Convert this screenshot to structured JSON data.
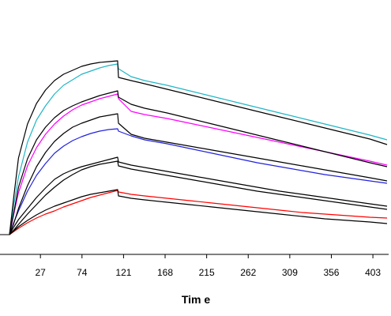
{
  "chart_data": {
    "type": "line",
    "title": "",
    "xlabel": "Tim e",
    "ylabel": "",
    "xlim": [
      -8,
      419
    ],
    "ylim": [
      0,
      250
    ],
    "x_ticks": [
      27,
      74,
      121,
      168,
      215,
      262,
      309,
      356,
      403
    ],
    "x_tick_labels": [
      "27",
      "74",
      "121",
      "168",
      "215",
      "262",
      "309",
      "356",
      "403"
    ],
    "grid": false,
    "legend": "none",
    "series": [
      {
        "color": "#21b6c6",
        "kind": "measured",
        "x": [
          0,
          5,
          10,
          20,
          30,
          40,
          50,
          60,
          70,
          80,
          90,
          100,
          110,
          120,
          121,
          135,
          150,
          175,
          200,
          225,
          250,
          275,
          300,
          325,
          350,
          375,
          400,
          419
        ],
        "values": [
          0,
          39,
          73,
          117,
          145,
          163,
          178,
          189,
          196,
          203,
          207,
          211,
          214,
          216,
          210,
          200,
          195,
          189,
          182,
          175,
          168,
          161,
          154,
          147,
          140,
          133,
          126,
          120
        ]
      },
      {
        "color": "#000000",
        "kind": "fit",
        "x": [
          0,
          5,
          10,
          20,
          30,
          40,
          50,
          60,
          70,
          80,
          90,
          100,
          110,
          120,
          121,
          135,
          150,
          175,
          200,
          225,
          250,
          275,
          300,
          325,
          350,
          375,
          400,
          419
        ],
        "values": [
          0,
          50,
          97,
          140,
          166,
          183,
          195,
          203,
          208,
          213,
          216,
          218,
          219,
          220,
          199,
          195,
          191,
          184,
          177,
          170,
          163,
          156,
          149,
          142,
          135,
          128,
          121,
          114
        ]
      },
      {
        "color": "#ff00ff",
        "kind": "measured",
        "x": [
          0,
          5,
          10,
          20,
          30,
          40,
          50,
          60,
          70,
          80,
          90,
          100,
          110,
          120,
          121,
          135,
          150,
          175,
          200,
          225,
          250,
          275,
          300,
          325,
          350,
          375,
          400,
          419
        ],
        "values": [
          0,
          27,
          53,
          87,
          110,
          127,
          140,
          150,
          158,
          164,
          168,
          172,
          175,
          178,
          172,
          156,
          152,
          147,
          141,
          135,
          129,
          123,
          117,
          111,
          105,
          99,
          93,
          88
        ]
      },
      {
        "color": "#000000",
        "kind": "fit",
        "x": [
          0,
          5,
          10,
          20,
          30,
          40,
          50,
          60,
          70,
          80,
          90,
          100,
          110,
          120,
          121,
          135,
          150,
          175,
          200,
          225,
          250,
          275,
          300,
          325,
          350,
          375,
          400,
          419
        ],
        "values": [
          0,
          29,
          60,
          96,
          120,
          136,
          148,
          157,
          163,
          168,
          172,
          176,
          179,
          182,
          174,
          165,
          160,
          154,
          147,
          140,
          133,
          126,
          119,
          112,
          105,
          98,
          91,
          86
        ]
      },
      {
        "color": "#2222dd",
        "kind": "measured",
        "x": [
          0,
          5,
          10,
          20,
          30,
          40,
          50,
          60,
          70,
          80,
          90,
          100,
          110,
          120,
          121,
          135,
          150,
          175,
          200,
          225,
          250,
          275,
          300,
          325,
          350,
          375,
          400,
          419
        ],
        "values": [
          0,
          16,
          30,
          55,
          75,
          90,
          103,
          112,
          119,
          124,
          128,
          131,
          133,
          134,
          131,
          125,
          120,
          115,
          109,
          103,
          97,
          91,
          86,
          81,
          76,
          72,
          68,
          65
        ]
      },
      {
        "color": "#000000",
        "kind": "fit",
        "x": [
          0,
          5,
          10,
          20,
          30,
          40,
          50,
          60,
          70,
          80,
          90,
          100,
          110,
          120,
          121,
          135,
          150,
          175,
          200,
          225,
          250,
          275,
          300,
          325,
          350,
          375,
          400,
          419
        ],
        "values": [
          0,
          15,
          33,
          62,
          86,
          104,
          118,
          128,
          136,
          141,
          145,
          149,
          151,
          153,
          141,
          127,
          122,
          117,
          112,
          107,
          102,
          97,
          92,
          87,
          82,
          77,
          72,
          68
        ]
      },
      {
        "color": "#000000",
        "kind": "fit",
        "x": [
          0,
          5,
          10,
          20,
          30,
          40,
          50,
          60,
          70,
          80,
          90,
          100,
          110,
          120,
          121,
          135,
          150,
          175,
          200,
          225,
          250,
          275,
          300,
          325,
          350,
          375,
          400,
          419
        ],
        "values": [
          0,
          10,
          19,
          33,
          47,
          59,
          70,
          77,
          82,
          86,
          89,
          92,
          95,
          98,
          92,
          88,
          85,
          80,
          75,
          70,
          65,
          60,
          55,
          51,
          47,
          43,
          39,
          36
        ]
      },
      {
        "color": "#000000",
        "kind": "fit",
        "x": [
          0,
          5,
          10,
          20,
          30,
          40,
          50,
          60,
          70,
          80,
          90,
          100,
          110,
          120,
          121,
          135,
          150,
          175,
          200,
          225,
          250,
          275,
          300,
          325,
          350,
          375,
          400,
          419
        ],
        "values": [
          0,
          6,
          13,
          26,
          38,
          50,
          60,
          69,
          76,
          82,
          86,
          89,
          91,
          93,
          87,
          83,
          80,
          75,
          70,
          65,
          60,
          55,
          51,
          47,
          43,
          39,
          35,
          32
        ]
      },
      {
        "color": "#ff0000",
        "kind": "measured",
        "x": [
          0,
          5,
          10,
          20,
          30,
          40,
          50,
          60,
          70,
          80,
          90,
          100,
          110,
          120,
          121,
          135,
          150,
          175,
          200,
          225,
          250,
          275,
          300,
          325,
          350,
          375,
          400,
          419
        ],
        "values": [
          0,
          4,
          8,
          15,
          21,
          26,
          30,
          35,
          39,
          43,
          47,
          50,
          53,
          56,
          54,
          51,
          49,
          46,
          43,
          40,
          37,
          34,
          31,
          28,
          26,
          24,
          22,
          21
        ]
      },
      {
        "color": "#000000",
        "kind": "fit",
        "x": [
          0,
          5,
          10,
          20,
          30,
          40,
          50,
          60,
          70,
          80,
          90,
          100,
          110,
          120,
          121,
          135,
          150,
          175,
          200,
          225,
          250,
          275,
          300,
          325,
          350,
          375,
          400,
          419
        ],
        "values": [
          0,
          5,
          10,
          18,
          25,
          31,
          36,
          40,
          44,
          48,
          51,
          53,
          55,
          57,
          49,
          46,
          44,
          41,
          38,
          35,
          32,
          29,
          26,
          23,
          20,
          18,
          16,
          14
        ]
      }
    ]
  }
}
